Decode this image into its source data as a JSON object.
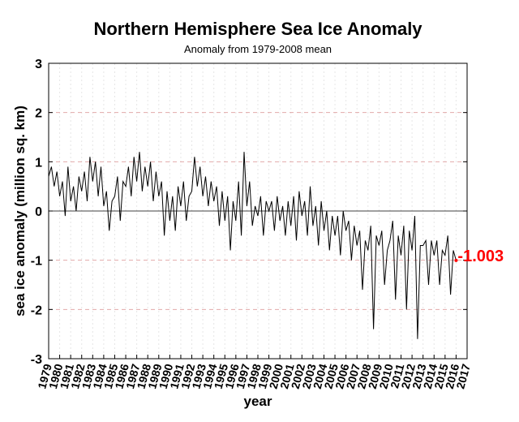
{
  "chart_data": {
    "type": "line",
    "title": "Northern Hemisphere Sea Ice Anomaly",
    "subtitle": "Anomaly from 1979-2008 mean",
    "xlabel": "year",
    "ylabel": "sea ice anomaly (million sq. km)",
    "xlim": [
      1979,
      2017
    ],
    "ylim": [
      -3,
      3
    ],
    "yticks": [
      -3,
      -2,
      -1,
      0,
      1,
      2,
      3
    ],
    "xticks": [
      "1979",
      "1980",
      "1981",
      "1982",
      "1983",
      "1984",
      "1985",
      "1986",
      "1987",
      "1988",
      "1989",
      "1990",
      "1991",
      "1992",
      "1993",
      "1994",
      "1995",
      "1996",
      "1997",
      "1998",
      "1999",
      "2000",
      "2001",
      "2002",
      "2003",
      "2004",
      "2005",
      "2006",
      "2007",
      "2008",
      "2009",
      "2010",
      "2011",
      "2012",
      "2013",
      "2014",
      "2015",
      "2016",
      "2017"
    ],
    "grid": true,
    "zero_line": true,
    "series_color": "#000000",
    "grid_color": "#e2a9a9",
    "annotation_color": "#ff0000",
    "annotation": {
      "x": 2016.0,
      "y": -1.003,
      "text": "-1.003"
    },
    "series": [
      {
        "x": [
          1979.0,
          1979.25,
          1979.5,
          1979.75,
          1980.0,
          1980.25,
          1980.5,
          1980.75,
          1981.0,
          1981.25,
          1981.5,
          1981.75,
          1982.0,
          1982.25,
          1982.5,
          1982.75,
          1983.0,
          1983.25,
          1983.5,
          1983.75,
          1984.0,
          1984.25,
          1984.5,
          1984.75,
          1985.0,
          1985.25,
          1985.5,
          1985.75,
          1986.0,
          1986.25,
          1986.5,
          1986.75,
          1987.0,
          1987.25,
          1987.5,
          1987.75,
          1988.0,
          1988.25,
          1988.5,
          1988.75,
          1989.0,
          1989.25,
          1989.5,
          1989.75,
          1990.0,
          1990.25,
          1990.5,
          1990.75,
          1991.0,
          1991.25,
          1991.5,
          1991.75,
          1992.0,
          1992.25,
          1992.5,
          1992.75,
          1993.0,
          1993.25,
          1993.5,
          1993.75,
          1994.0,
          1994.25,
          1994.5,
          1994.75,
          1995.0,
          1995.25,
          1995.5,
          1995.75,
          1996.0,
          1996.25,
          1996.5,
          1996.75,
          1997.0,
          1997.25,
          1997.5,
          1997.75,
          1998.0,
          1998.25,
          1998.5,
          1998.75,
          1999.0,
          1999.25,
          1999.5,
          1999.75,
          2000.0,
          2000.25,
          2000.5,
          2000.75,
          2001.0,
          2001.25,
          2001.5,
          2001.75,
          2002.0,
          2002.25,
          2002.5,
          2002.75,
          2003.0,
          2003.25,
          2003.5,
          2003.75,
          2004.0,
          2004.25,
          2004.5,
          2004.75,
          2005.0,
          2005.25,
          2005.5,
          2005.75,
          2006.0,
          2006.25,
          2006.5,
          2006.75,
          2007.0,
          2007.25,
          2007.5,
          2007.75,
          2008.0,
          2008.25,
          2008.5,
          2008.75,
          2009.0,
          2009.25,
          2009.5,
          2009.75,
          2010.0,
          2010.25,
          2010.5,
          2010.75,
          2011.0,
          2011.25,
          2011.5,
          2011.75,
          2012.0,
          2012.25,
          2012.5,
          2012.75,
          2013.0,
          2013.25,
          2013.5,
          2013.75,
          2014.0,
          2014.25,
          2014.5,
          2014.75,
          2015.0,
          2015.25,
          2015.5,
          2015.75,
          2016.0
        ],
        "values": [
          0.7,
          0.9,
          0.5,
          0.8,
          0.3,
          0.6,
          -0.1,
          0.9,
          0.2,
          0.5,
          0.0,
          0.7,
          0.4,
          0.8,
          0.2,
          1.1,
          0.6,
          1.0,
          0.3,
          0.9,
          0.1,
          0.4,
          -0.4,
          0.2,
          0.3,
          0.7,
          -0.2,
          0.6,
          0.5,
          0.9,
          0.3,
          1.1,
          0.6,
          1.2,
          0.4,
          0.9,
          0.5,
          1.0,
          0.2,
          0.8,
          0.3,
          0.6,
          -0.5,
          0.4,
          -0.2,
          0.3,
          -0.4,
          0.5,
          0.1,
          0.6,
          -0.2,
          0.3,
          0.4,
          1.1,
          0.5,
          0.9,
          0.3,
          0.7,
          0.1,
          0.6,
          0.2,
          0.5,
          -0.3,
          0.4,
          -0.2,
          0.3,
          -0.8,
          0.2,
          -0.2,
          0.6,
          -0.5,
          1.2,
          0.1,
          0.6,
          -0.3,
          0.1,
          -0.1,
          0.3,
          -0.5,
          0.2,
          0.0,
          0.2,
          -0.4,
          0.3,
          -0.2,
          0.1,
          -0.5,
          0.2,
          -0.3,
          0.3,
          -0.6,
          0.4,
          -0.1,
          0.2,
          -0.5,
          0.5,
          -0.3,
          0.1,
          -0.7,
          0.2,
          -0.4,
          0.0,
          -0.8,
          -0.1,
          -0.5,
          -0.1,
          -0.9,
          0.0,
          -0.4,
          -0.2,
          -1.0,
          -0.3,
          -0.7,
          -0.4,
          -1.6,
          -0.6,
          -0.8,
          -0.3,
          -2.4,
          -0.5,
          -0.7,
          -0.4,
          -1.5,
          -0.8,
          -0.6,
          -0.2,
          -1.8,
          -0.5,
          -0.9,
          -0.3,
          -2.0,
          -0.4,
          -0.8,
          -0.1,
          -2.6,
          -0.7,
          -0.7,
          -0.6,
          -1.5,
          -0.6,
          -0.9,
          -0.6,
          -1.5,
          -0.8,
          -0.9,
          -0.5,
          -1.7,
          -0.8,
          -1.003
        ]
      }
    ]
  }
}
